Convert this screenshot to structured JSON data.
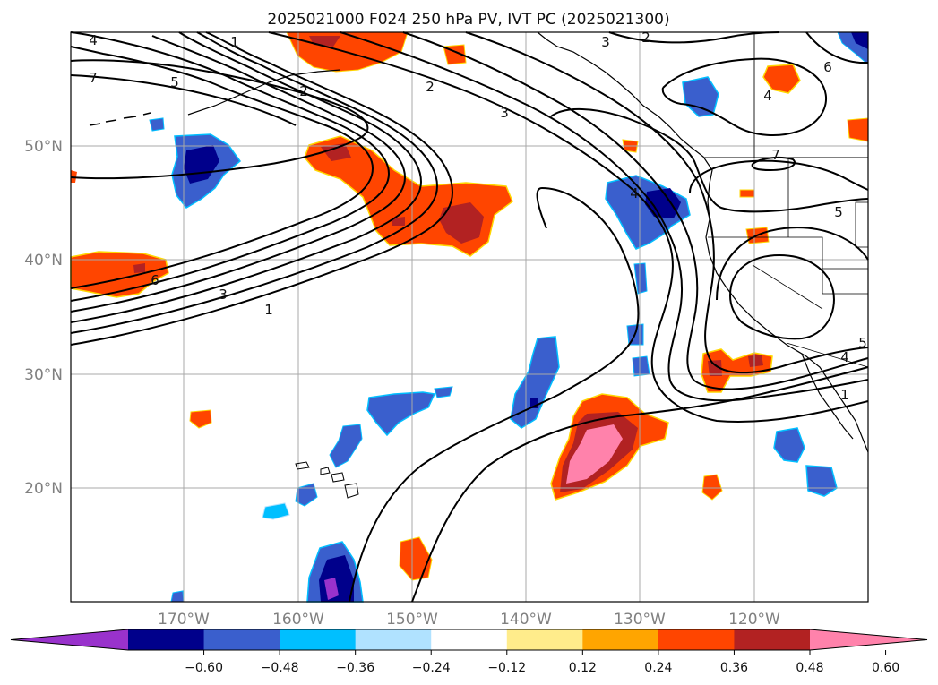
{
  "title": "2025021000 F024 250 hPa PV, IVT PC (2025021300)",
  "lat_labels": [
    "50°N",
    "40°N",
    "30°N",
    "20°N"
  ],
  "lon_labels": [
    "170°W",
    "160°W",
    "150°W",
    "140°W",
    "130°W",
    "120°W"
  ],
  "colorbar": {
    "tick_labels": [
      "−0.60",
      "−0.48",
      "−0.36",
      "−0.24",
      "−0.12",
      "0.12",
      "0.24",
      "0.36",
      "0.48",
      "0.60"
    ],
    "colors": [
      "#9932cc",
      "#00008b",
      "#3a5fcd",
      "#00bfff",
      "#b0e2ff",
      "#ffffff",
      "#ffec8b",
      "#ffa500",
      "#ff4500",
      "#b22222",
      "#ff82ab"
    ]
  },
  "contour_labels": [
    "4",
    "1",
    "7",
    "5",
    "2",
    "2",
    "3",
    "3",
    "2",
    "6",
    "4",
    "3",
    "1",
    "6",
    "4",
    "7",
    "5",
    "5",
    "4",
    "1"
  ],
  "chart_data": {
    "type": "map",
    "region": "North Pacific",
    "lat_range": [
      10,
      60
    ],
    "lon_range": [
      -180,
      -110
    ],
    "fields": [
      "250 hPa PV",
      "IVT PC"
    ]
  }
}
